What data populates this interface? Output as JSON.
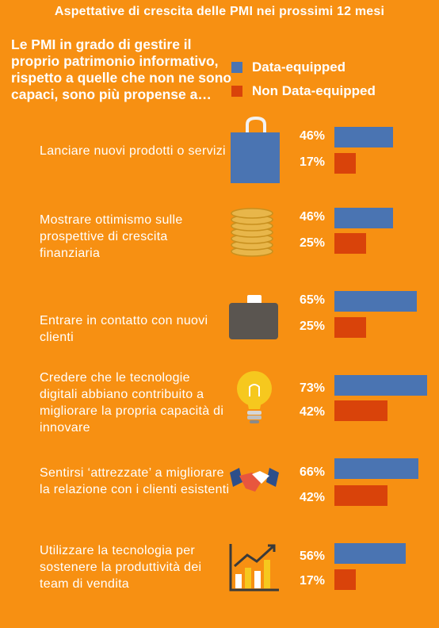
{
  "title": "Aspettative di crescita delle PMI nei prossimi 12 mesi",
  "intro": "Le PMI in grado di gestire il proprio patrimonio informativo, rispetto a quelle che non ne sono capaci, sono più propense a…",
  "colors": {
    "background": "#F79012",
    "data_equipped": "#4A74B2",
    "non_data_equipped": "#D9430A"
  },
  "chart_data": {
    "type": "bar",
    "orientation": "horizontal",
    "title": "Aspettative di crescita delle PMI nei prossimi 12 mesi",
    "legend": [
      "Data-equipped",
      "Non Data-equipped"
    ],
    "legend_position": "top-right",
    "unit": "%",
    "xlim": [
      0,
      100
    ],
    "categories": [
      "Lanciare nuovi prodotti o servizi",
      "Mostrare ottimismo sulle prospettive di crescita finanziaria",
      "Entrare in contatto con nuovi clienti",
      "Credere che le tecnologie digitali abbiano contribuito a migliorare la propria capacità di innovare",
      "Sentirsi ‘attrezzate’ a migliorare la relazione con i clienti esistenti",
      "Utilizzare la tecnologia per sostenere la produttività dei team di vendita"
    ],
    "series": [
      {
        "name": "Data-equipped",
        "values": [
          46,
          46,
          65,
          73,
          66,
          56
        ]
      },
      {
        "name": "Non Data-equipped",
        "values": [
          17,
          25,
          25,
          42,
          42,
          17
        ]
      }
    ],
    "value_labels": {
      "Data-equipped": [
        "46%",
        "46%",
        "65%",
        "73%",
        "66%",
        "56%"
      ],
      "Non Data-equipped": [
        "17%",
        "25%",
        "25%",
        "42%",
        "42%",
        "17%"
      ]
    },
    "icons": [
      "shopping-bag-icon",
      "coins-icon",
      "briefcase-icon",
      "lightbulb-icon",
      "handshake-icon",
      "growth-chart-icon"
    ]
  }
}
